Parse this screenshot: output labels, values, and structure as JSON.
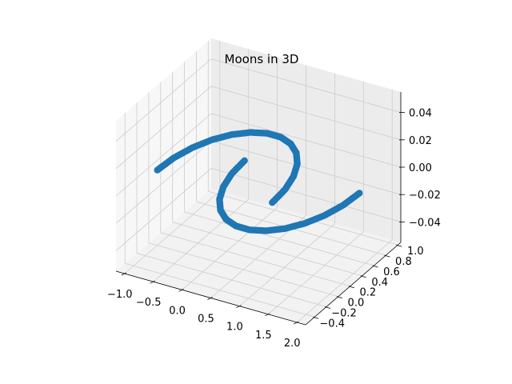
{
  "chart_data": {
    "type": "scatter",
    "projection": "3d",
    "title": "Moons in 3D",
    "xlabel": "",
    "ylabel": "",
    "zlabel": "",
    "grid": true,
    "legend": "none",
    "xlim": [
      -1.15,
      2.15
    ],
    "ylim": [
      -0.55,
      1.05
    ],
    "zlim": [
      -0.055,
      0.055
    ],
    "x_ticks": [
      -1.0,
      -0.5,
      0.0,
      0.5,
      1.0,
      1.5,
      2.0
    ],
    "x_tick_labels": [
      "−1.0",
      "−0.5",
      "0.0",
      "0.5",
      "1.0",
      "1.5",
      "2.0"
    ],
    "y_ticks": [
      -0.4,
      -0.2,
      0.0,
      0.2,
      0.4,
      0.6,
      0.8,
      1.0
    ],
    "y_tick_labels": [
      "−0.4",
      "−0.2",
      "0.0",
      "0.2",
      "0.4",
      "0.6",
      "0.8",
      "1.0"
    ],
    "z_ticks": [
      -0.04,
      -0.02,
      0.0,
      0.02,
      0.04
    ],
    "z_tick_labels": [
      "−0.04",
      "−0.02",
      "0.00",
      "0.02",
      "0.04"
    ],
    "series": [
      {
        "color": "#1f77b4",
        "description_points": "upper moon: x = cos(t), y = sin(t), z = 0 for t in [0, pi]",
        "points": [
          [
            1.0,
            0.0,
            0
          ],
          [
            0.97,
            0.243,
            0
          ],
          [
            0.881,
            0.472,
            0
          ],
          [
            0.743,
            0.669,
            0
          ],
          [
            0.561,
            0.828,
            0
          ],
          [
            0.349,
            0.937,
            0
          ],
          [
            0.119,
            0.993,
            0
          ],
          [
            -0.119,
            0.993,
            0
          ],
          [
            -0.349,
            0.937,
            0
          ],
          [
            -0.561,
            0.828,
            0
          ],
          [
            -0.743,
            0.669,
            0
          ],
          [
            -0.881,
            0.472,
            0
          ],
          [
            -0.97,
            0.243,
            0
          ],
          [
            -1.0,
            0.0,
            0
          ]
        ]
      },
      {
        "color": "#1f77b4",
        "description_points": "lower moon: x = 1 - cos(t), y = 0.5 - sin(t), z = 0 for t in [0, pi]",
        "points": [
          [
            0.0,
            0.5,
            0
          ],
          [
            0.03,
            0.257,
            0
          ],
          [
            0.119,
            0.028,
            0
          ],
          [
            0.257,
            -0.169,
            0
          ],
          [
            0.439,
            -0.328,
            0
          ],
          [
            0.651,
            -0.437,
            0
          ],
          [
            0.881,
            -0.493,
            0
          ],
          [
            1.119,
            -0.493,
            0
          ],
          [
            1.349,
            -0.437,
            0
          ],
          [
            1.561,
            -0.328,
            0
          ],
          [
            1.743,
            -0.169,
            0
          ],
          [
            1.881,
            0.028,
            0
          ],
          [
            1.97,
            0.257,
            0
          ],
          [
            2.0,
            0.5,
            0
          ]
        ]
      }
    ]
  }
}
